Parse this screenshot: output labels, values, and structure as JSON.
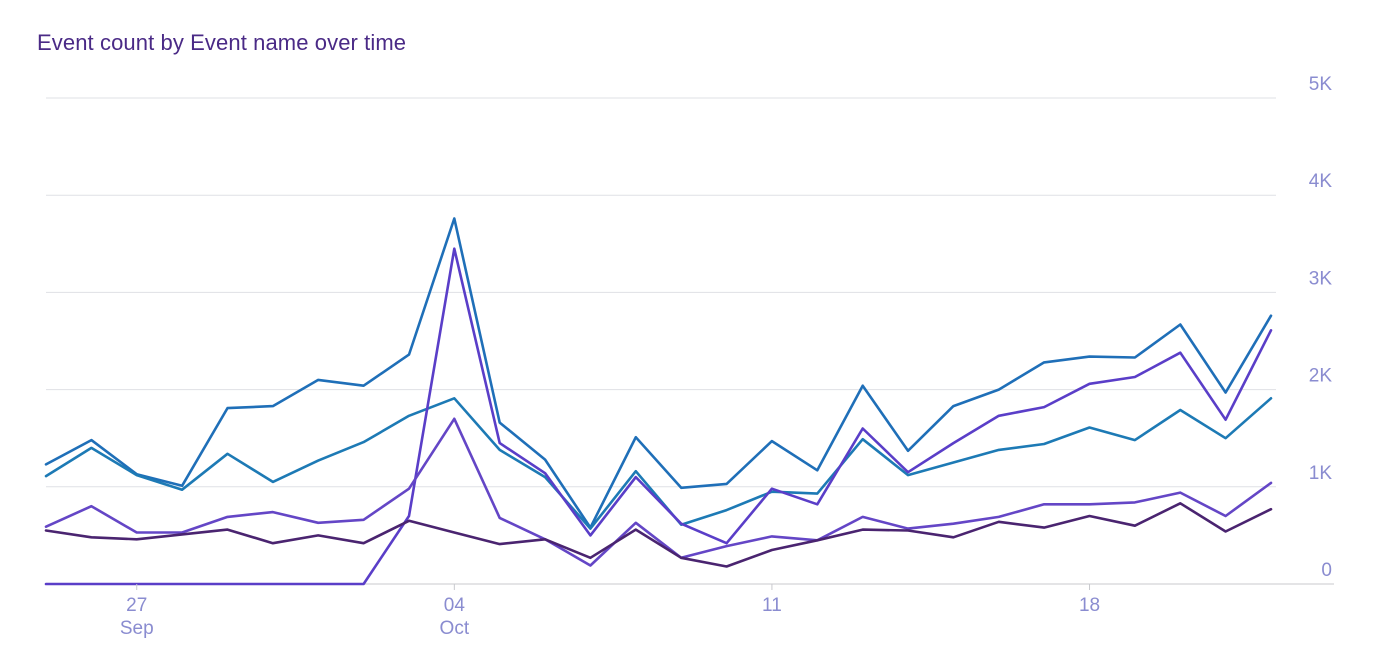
{
  "chart_data": {
    "type": "line",
    "title": "Event count by Event name over time",
    "xlabel": "",
    "ylabel": "",
    "ylim": [
      0,
      5000
    ],
    "grid": true,
    "x_start": "2023-09-25",
    "x_end": "2023-10-22",
    "x_ticks": [
      {
        "date": "2023-09-27",
        "day": "27",
        "month": "Sep"
      },
      {
        "date": "2023-10-04",
        "day": "04",
        "month": "Oct"
      },
      {
        "date": "2023-10-11",
        "day": "11",
        "month": ""
      },
      {
        "date": "2023-10-18",
        "day": "18",
        "month": ""
      }
    ],
    "y_ticks": [
      {
        "value": 0,
        "label": "0"
      },
      {
        "value": 1000,
        "label": "1K"
      },
      {
        "value": 2000,
        "label": "2K"
      },
      {
        "value": 3000,
        "label": "3K"
      },
      {
        "value": 4000,
        "label": "4K"
      },
      {
        "value": 5000,
        "label": "5K"
      }
    ],
    "series": [
      {
        "color": "#1f6fb8",
        "values": [
          1230,
          1480,
          1130,
          1010,
          1810,
          1830,
          2100,
          2040,
          2360,
          3760,
          1660,
          1280,
          580,
          1510,
          990,
          1030,
          1470,
          1170,
          2040,
          1370,
          1830,
          2000,
          2280,
          2340,
          2330,
          2670,
          1970,
          2760
        ]
      },
      {
        "color": "#1d7ab5",
        "values": [
          1110,
          1400,
          1120,
          970,
          1340,
          1050,
          1270,
          1460,
          1730,
          1910,
          1380,
          1100,
          570,
          1160,
          610,
          760,
          950,
          930,
          1490,
          1120,
          1250,
          1380,
          1440,
          1610,
          1480,
          1790,
          1500,
          1910
        ]
      },
      {
        "color": "#5a3ec8",
        "values": [
          0,
          0,
          0,
          0,
          0,
          0,
          0,
          0,
          700,
          3450,
          1450,
          1140,
          500,
          1100,
          620,
          420,
          980,
          820,
          1600,
          1150,
          1450,
          1730,
          1820,
          2060,
          2130,
          2380,
          1690,
          2610
        ]
      },
      {
        "color": "#6446c6",
        "values": [
          590,
          800,
          530,
          530,
          690,
          740,
          630,
          660,
          980,
          1700,
          680,
          460,
          190,
          630,
          270,
          390,
          490,
          450,
          690,
          570,
          620,
          690,
          820,
          820,
          840,
          940,
          700,
          1040
        ]
      },
      {
        "color": "#4a2470",
        "values": [
          550,
          480,
          460,
          510,
          560,
          420,
          500,
          420,
          650,
          530,
          410,
          460,
          270,
          560,
          270,
          180,
          350,
          450,
          560,
          550,
          480,
          640,
          580,
          700,
          600,
          830,
          540,
          770
        ]
      }
    ]
  }
}
